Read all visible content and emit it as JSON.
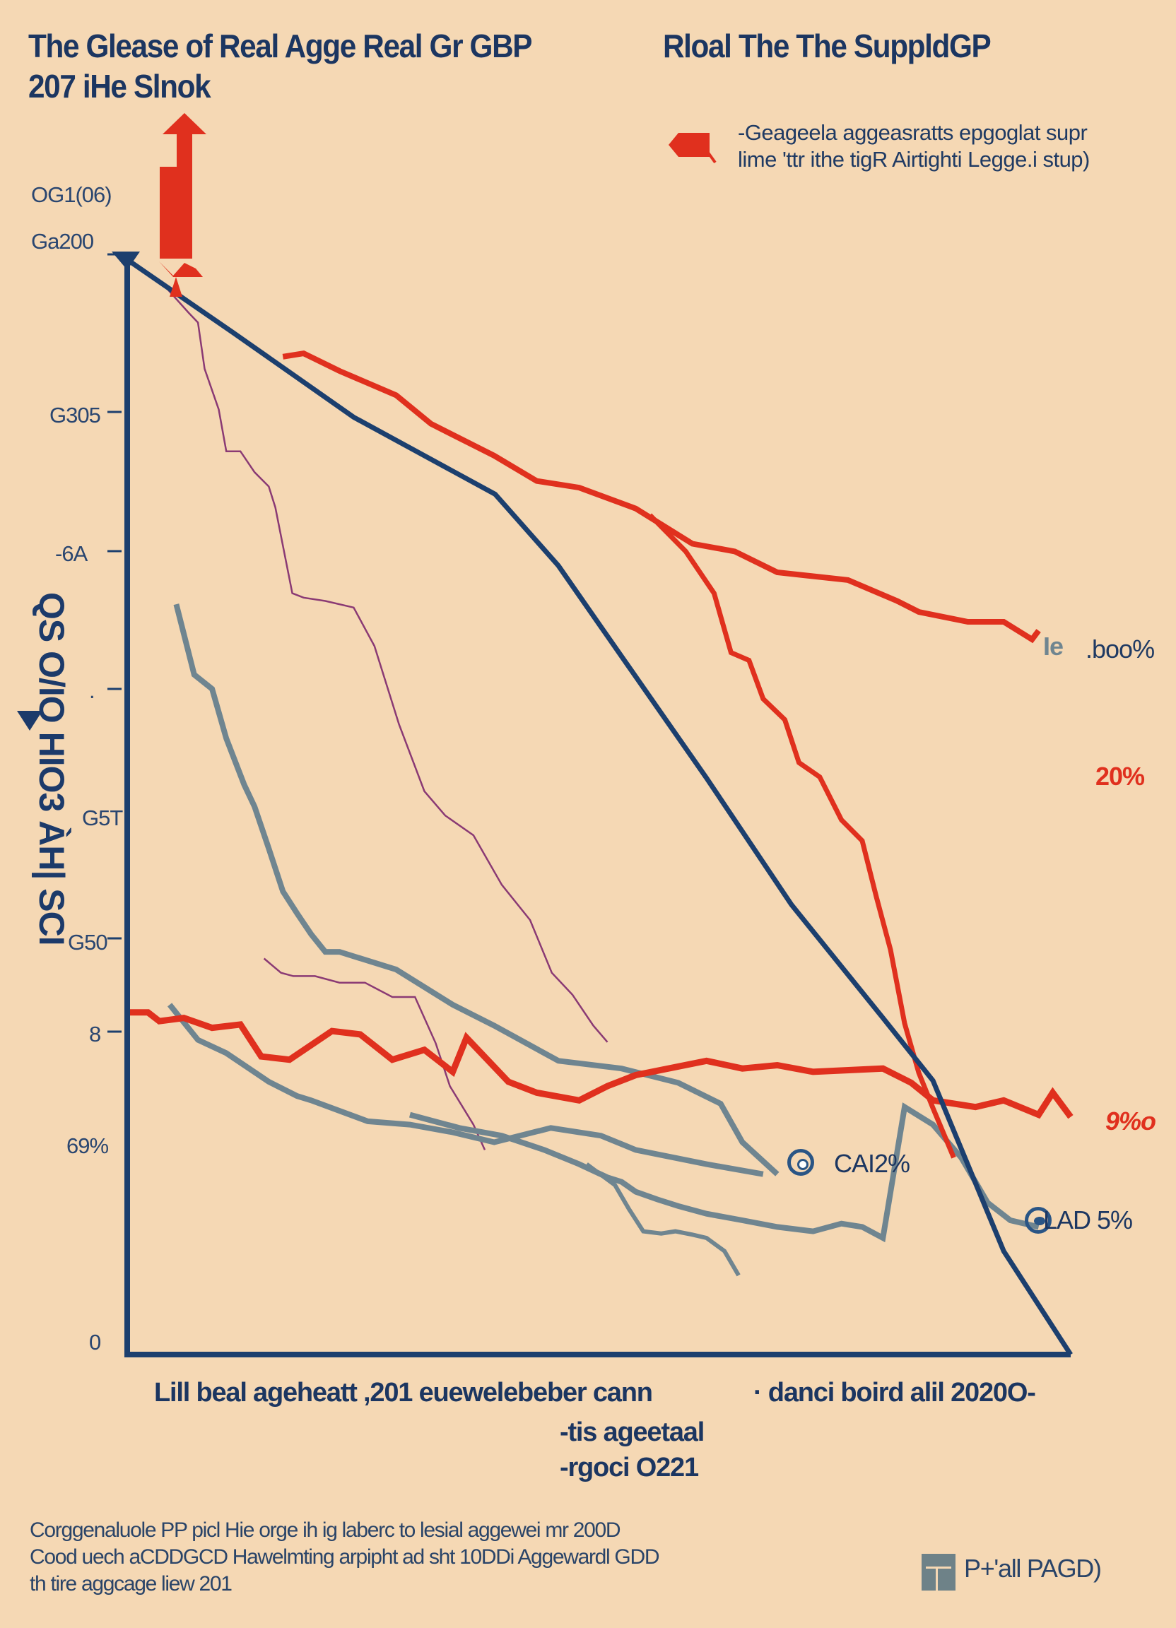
{
  "colors": {
    "background": "#f5d8b4",
    "navy": "#1c3f6e",
    "red": "#e0301e",
    "gray": "#6f8590",
    "purple": "#8a3a74"
  },
  "header": {
    "title_line1a": "The  Glease of Real Agge Real Gr GBP",
    "title_line1b": "Rloal The The SuppldGP",
    "title_line2": "207 iHe Slnok"
  },
  "legend": {
    "line1": "-Geageela aggeasratts epgoglat supr",
    "line2": "lime 'ttr ithe tigR Airtighti Legge.i stup)"
  },
  "footer": {
    "line1": "Corggenaluole PP picl Hie orge ih ig laberc to lesial aggewei mr 200D",
    "line2": "Cood uech aCDDGCD Hawelmting arpipht ad sht 10DDi Aggewardl GDD",
    "line3": "th tire aggcage liew 201",
    "badge": "P+'all PAGD)"
  },
  "chart_data": {
    "type": "line",
    "title": "The Glease of Real Agge Real Gr GBP  Rloal The The SuppldGP 207 iHe Slnok",
    "ylabel": "QS O/IO HIO3 ÀH| SCI",
    "xlabel": "Lill beal ageheatt ,201 euewelebeber cann",
    "xlabel_right": "· danci boird alil 2020O-",
    "xlabel_sub": [
      "-tis ageetaal",
      "-rgoci O221"
    ],
    "y_tick_labels": [
      "OG1(06)",
      "Ga200",
      "G305",
      "-6A",
      ".",
      "G5T",
      "G50",
      "8",
      "69%",
      "0"
    ],
    "xlim": [
      0,
      100
    ],
    "ylim": [
      0,
      100
    ],
    "grid": false,
    "legend_position": "top-right",
    "annotations": [
      {
        "text": "Ie",
        "color": "#6f8590"
      },
      {
        "text": ".boo%",
        "color": "#1f3a63"
      },
      {
        "text": "20%",
        "color": "#e0301e"
      },
      {
        "text": "9%o",
        "color": "#e0301e"
      },
      {
        "text": "CAI2%",
        "color": "#1c3661"
      },
      {
        "text": "LAD 5%",
        "color": "#1c3661"
      }
    ],
    "series": [
      {
        "name": "navy-trend",
        "color": "#1c3f6e",
        "x": [
          0.2,
          11.2,
          24.0,
          39.0,
          45.7,
          50.9,
          61.4,
          70.4,
          80.1,
          85.4,
          92.9,
          100
        ],
        "y": [
          99.4,
          92.9,
          85.2,
          78.2,
          71.7,
          65.3,
          52.4,
          40.9,
          30.6,
          24.9,
          9.4,
          0
        ]
      },
      {
        "name": "red-upper",
        "color": "#e0301e",
        "x": [
          16.5,
          18.7,
          22.5,
          28.5,
          32.2,
          38.9,
          43.4,
          47.9,
          53.9,
          59.9,
          64.4,
          68.9,
          76.4,
          81.6,
          83.9,
          89.1,
          92.9,
          95.9,
          96.6
        ],
        "y": [
          90.7,
          91.0,
          89.4,
          87.2,
          84.6,
          81.7,
          79.4,
          78.8,
          76.9,
          73.7,
          73.0,
          71.1,
          70.4,
          68.5,
          67.5,
          66.6,
          66.6,
          65.0,
          65.8
        ]
      },
      {
        "name": "red-upper-branch",
        "color": "#e0301e",
        "x": [
          55.4,
          59.2,
          62.2,
          64.0,
          65.9,
          67.4,
          69.7,
          71.2,
          73.4,
          75.7,
          77.9,
          79.4,
          80.9,
          82.4,
          83.9,
          85.4,
          87.6
        ],
        "y": [
          76.3,
          73.0,
          69.2,
          63.8,
          63.1,
          59.6,
          57.7,
          53.8,
          52.5,
          48.6,
          46.7,
          41.6,
          36.8,
          30.1,
          25.6,
          22.4,
          17.9
        ]
      },
      {
        "name": "red-lower",
        "color": "#e0301e",
        "x": [
          0,
          2.2,
          3.4,
          6.0,
          9.0,
          12.0,
          14.2,
          17.2,
          21.7,
          24.7,
          28.1,
          31.5,
          34.5,
          35.96,
          40.4,
          43.4,
          47.9,
          50.9,
          53.9,
          61.4,
          65.2,
          68.9,
          72.7,
          80.1,
          83.1,
          85.4,
          89.9,
          92.9,
          96.6,
          98.1,
          100
        ],
        "y": [
          31.1,
          31.1,
          30.3,
          30.6,
          29.7,
          30.0,
          27.1,
          26.8,
          29.4,
          29.1,
          26.8,
          27.7,
          25.7,
          28.8,
          24.8,
          23.8,
          23.1,
          24.4,
          25.4,
          26.7,
          26.0,
          26.3,
          25.7,
          26.0,
          24.7,
          23.1,
          22.5,
          23.1,
          21.8,
          23.8,
          21.6
        ]
      },
      {
        "name": "gray-upper",
        "color": "#6f8590",
        "x": [
          5.2,
          7.1,
          9.0,
          10.5,
          12.4,
          13.5,
          15.0,
          16.5,
          18.0,
          19.5,
          21.0,
          22.5,
          28.5,
          34.5,
          38.9,
          45.7,
          52.4,
          58.4,
          62.9,
          65.2,
          68.9
        ],
        "y": [
          68.2,
          61.8,
          60.5,
          56.0,
          51.8,
          49.8,
          46.0,
          42.1,
          40.1,
          38.2,
          36.6,
          36.6,
          35.0,
          31.8,
          29.9,
          26.7,
          26.0,
          24.7,
          22.8,
          19.3,
          16.4
        ]
      },
      {
        "name": "gray-lower",
        "color": "#6f8590",
        "x": [
          4.5,
          7.5,
          10.5,
          15.0,
          18.0,
          19.5,
          25.5,
          29.96,
          34.5,
          38.9,
          44.9,
          50.2,
          53.9,
          61.4,
          67.4
        ],
        "y": [
          31.8,
          28.6,
          27.4,
          24.8,
          23.5,
          23.1,
          21.2,
          20.9,
          20.2,
          19.3,
          20.6,
          19.9,
          18.6,
          17.3,
          16.4
        ]
      },
      {
        "name": "gray-tail",
        "color": "#6f8590",
        "x": [
          29.96,
          35.2,
          39.7,
          44.2,
          47.9,
          50.9,
          52.4,
          53.9,
          56.2,
          58.4,
          61.4,
          65.2,
          68.9,
          72.7,
          75.7,
          77.9,
          80.1,
          82.4,
          85.4,
          88.4,
          91.2,
          93.6,
          96.6
        ],
        "y": [
          21.8,
          20.6,
          19.9,
          18.6,
          17.3,
          16.1,
          15.7,
          14.8,
          14.1,
          13.5,
          12.8,
          12.2,
          11.6,
          11.2,
          11.9,
          11.6,
          10.6,
          22.5,
          20.9,
          17.9,
          13.8,
          12.2,
          11.6
        ]
      },
      {
        "name": "gray-drop",
        "color": "#6f8590",
        "x": [
          48.7,
          51.7,
          53.2,
          54.7,
          56.6,
          58.1,
          59.9,
          61.4,
          63.3,
          64.8
        ],
        "y": [
          17.3,
          15.4,
          13.2,
          11.2,
          11.0,
          11.2,
          10.9,
          10.6,
          9.4,
          7.2
        ]
      },
      {
        "name": "purple",
        "color": "#8a3a74",
        "x": [
          4.0,
          6.5,
          7.5,
          8.2,
          9.7,
          10.5,
          12.0,
          13.5,
          15.0,
          15.7,
          17.5,
          18.7,
          21.0,
          24.0,
          26.2,
          28.8,
          31.5,
          33.7,
          36.7,
          39.7,
          42.7,
          45.0,
          47.2,
          49.4,
          50.9
        ],
        "y": [
          97.1,
          94.7,
          93.8,
          89.6,
          85.9,
          82.1,
          82.1,
          80.2,
          78.9,
          77.0,
          69.2,
          68.8,
          68.5,
          67.9,
          64.4,
          57.3,
          51.2,
          49.0,
          47.2,
          42.7,
          39.5,
          34.7,
          32.7,
          29.9,
          28.4
        ]
      },
      {
        "name": "purple-lower",
        "color": "#8a3a74",
        "x": [
          14.5,
          16.3,
          17.6,
          19.9,
          22.5,
          25.2,
          28.1,
          30.5,
          32.7,
          34.2,
          36.7,
          37.9
        ],
        "y": [
          36.0,
          34.7,
          34.4,
          34.4,
          33.8,
          33.8,
          32.5,
          32.5,
          28.3,
          24.4,
          20.9,
          18.6
        ]
      }
    ]
  }
}
